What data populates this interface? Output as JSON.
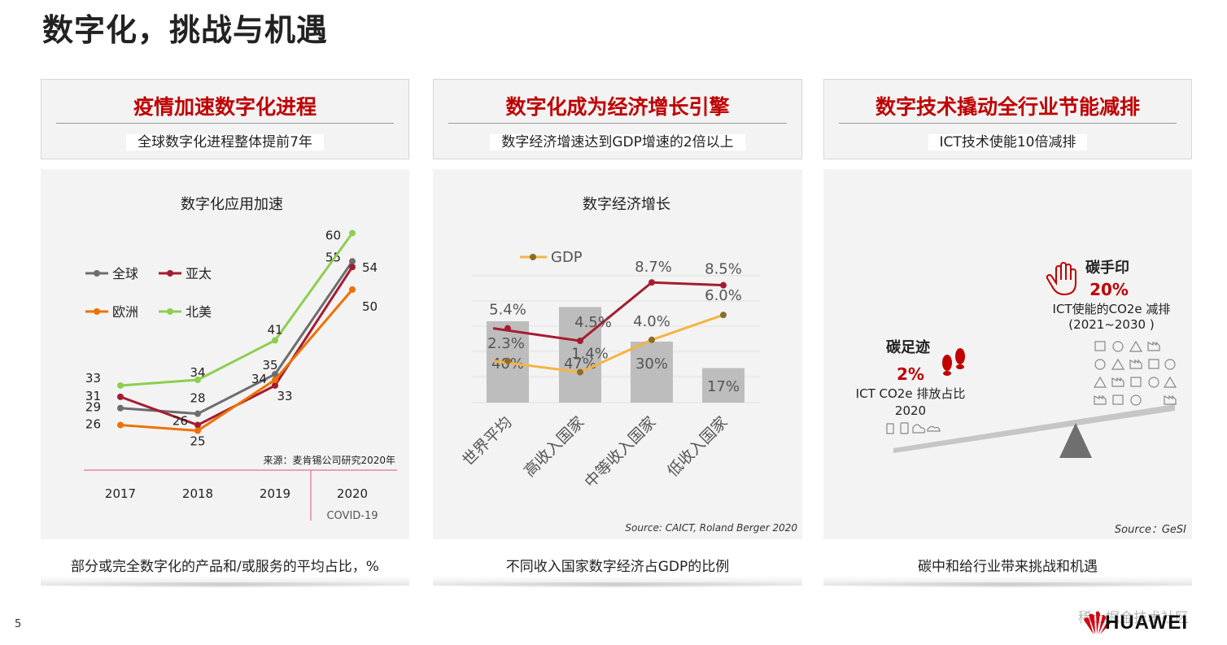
{
  "page": {
    "title": "数字化，挑战与机遇",
    "page_number": "5",
    "logo_text": "HUAWEI",
    "watermark": "稀土掘金技术社区"
  },
  "panels": [
    {
      "heading": "疫情加速数字化进程",
      "subheading": "全球数字化进程整体提前7年",
      "caption": "部分或完全数字化的产品和/或服务的平均占比，%"
    },
    {
      "heading": "数字化成为经济增长引擎",
      "subheading": "数字经济增速达到GDP增速的2倍以上",
      "caption": "不同收入国家数字经济占GDP的比例"
    },
    {
      "heading": "数字技术撬动全行业节能减排",
      "subheading": "ICT技术使能10倍减排",
      "caption": "碳中和给行业带来挑战和机遇"
    }
  ],
  "chart_data": [
    {
      "type": "line",
      "title": "数字化应用加速",
      "categories": [
        "2017",
        "2018",
        "2019",
        "2020"
      ],
      "series": [
        {
          "name": "全球",
          "values": [
            29,
            28,
            35,
            55
          ],
          "color": "#6d6d6d"
        },
        {
          "name": "亚太",
          "values": [
            31,
            26,
            33,
            54
          ],
          "color": "#a51c30"
        },
        {
          "name": "欧洲",
          "values": [
            26,
            25,
            34,
            50
          ],
          "color": "#ee7100"
        },
        {
          "name": "北美",
          "values": [
            33,
            34,
            41,
            60
          ],
          "color": "#8ccf4f"
        }
      ],
      "ylim": [
        20,
        65
      ],
      "source": "来源：麦肯锡公司研究2020年",
      "annotation": "COVID-19",
      "grid": false,
      "legend": "top-left"
    },
    {
      "type": "bar",
      "title": "数字经济增长",
      "categories": [
        "世界平均",
        "高收入国家",
        "中等收入国家",
        "低收入国家"
      ],
      "bar_values": [
        40,
        47,
        30,
        17
      ],
      "bar_labels": [
        "40%",
        "47%",
        "30%",
        "17%"
      ],
      "bar_color": "#bdbdbd",
      "lines": [
        {
          "name": "",
          "values": [
            5.4,
            4.5,
            8.7,
            8.5
          ],
          "labels": [
            "5.4%",
            "4.5%",
            "8.7%",
            "8.5%"
          ],
          "color": "#a51c30"
        },
        {
          "name": "GDP",
          "values": [
            2.3,
            1.4,
            4.0,
            6.0
          ],
          "labels": [
            "2.3%",
            "1.4%",
            "4.0%",
            "6.0%"
          ],
          "color": "#f5b443"
        }
      ],
      "source": "Source:  CAICT, Roland Berger 2020",
      "grid": true,
      "legend": "top-left"
    }
  ],
  "balance": {
    "left_title": "碳足迹",
    "left_value": "2%",
    "left_desc1": "ICT CO2e 排放占比",
    "left_desc2": "2020",
    "right_title": "碳手印",
    "right_value": "20%",
    "right_desc1": "ICT使能的CO2e 减排",
    "right_desc2": "(2021~2030 )",
    "source": "Source：GeSI",
    "accent": "#c00000"
  }
}
